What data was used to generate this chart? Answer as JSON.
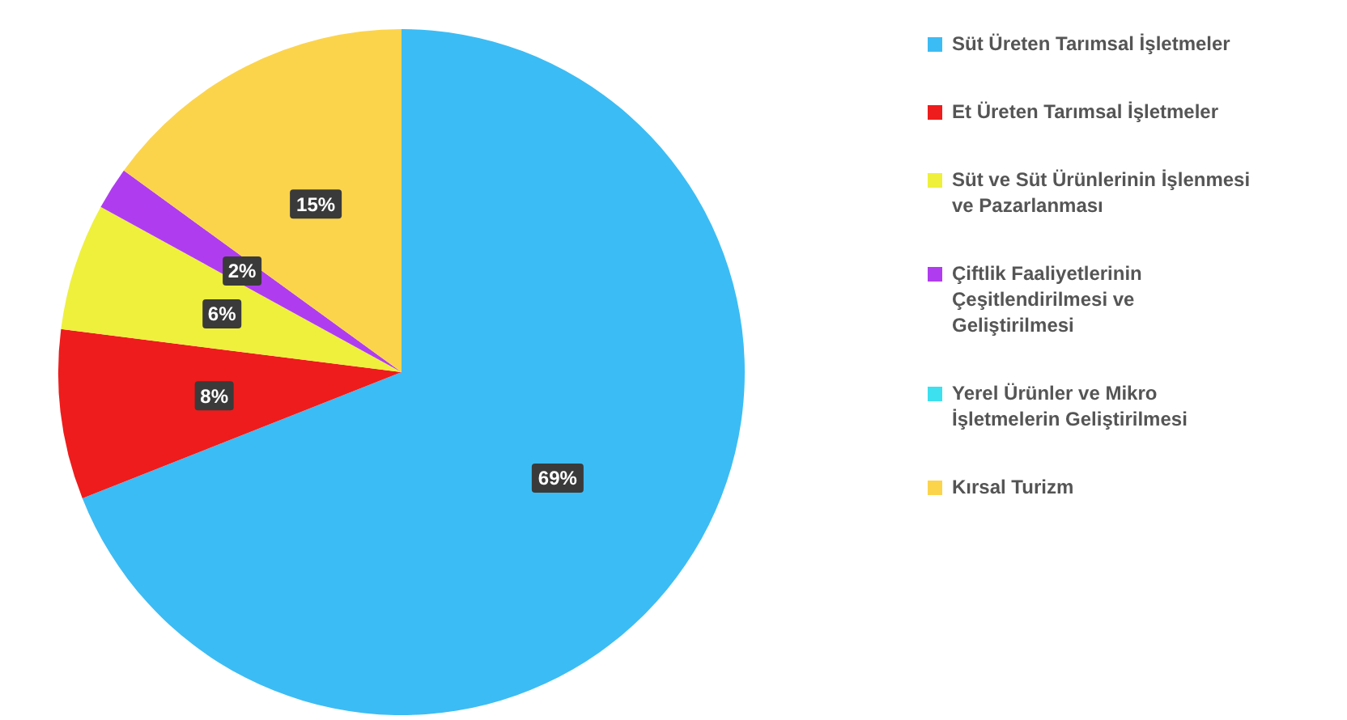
{
  "chart_data": {
    "type": "pie",
    "categories": [
      "Süt Üreten Tarımsal İşletmeler",
      "Et Üreten Tarımsal İşletmeler",
      "Süt ve Süt Ürünlerinin İşlenmesi ve Pazarlanması",
      "Çiftlik Faaliyetlerinin Çeşitlendirilmesi ve Geliştirilmesi",
      "Yerel Ürünler ve Mikro İşletmelerin Geliştirilmesi",
      "Kırsal Turizm"
    ],
    "values": [
      69,
      8,
      6,
      2,
      0,
      15
    ],
    "colors": [
      "#3cbcf4",
      "#ee1c1c",
      "#eef03c",
      "#b03cf0",
      "#3ce0ee",
      "#fcd44c"
    ],
    "value_labels": [
      "69%",
      "8%",
      "6%",
      "2%",
      null,
      "15%"
    ],
    "legend": "right"
  }
}
